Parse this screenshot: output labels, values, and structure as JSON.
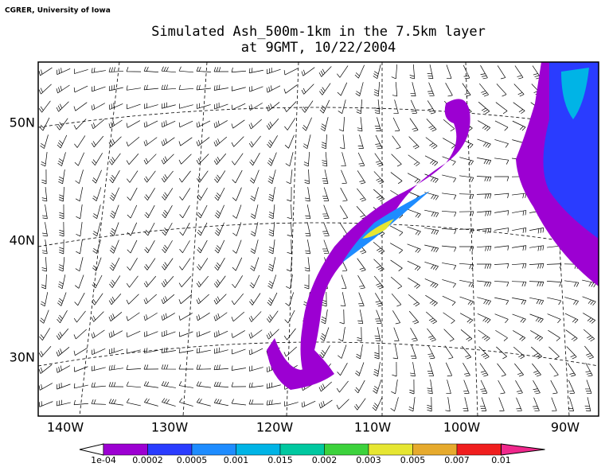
{
  "header": {
    "credit": "CGRER, University of Iowa",
    "title": [
      "Simulated Ash_500m-1km in the 7.5km layer",
      "at 9GMT, 10/22/2004"
    ]
  },
  "map": {
    "lat_labels": [
      "50N",
      "40N",
      "30N"
    ],
    "lon_labels": [
      "140W",
      "130W",
      "120W",
      "110W",
      "100W",
      "90W"
    ]
  },
  "legend": {
    "labels": [
      "1e-04",
      "0.0002",
      "0.0005",
      "0.001",
      "0.015",
      "0.002",
      "0.003",
      "0.005",
      "0.007",
      "0.01"
    ],
    "colors": [
      "#9c00d2",
      "#2a3cff",
      "#1e8cff",
      "#00b4e6",
      "#00c8a0",
      "#3cd23c",
      "#e6e632",
      "#e6aa2d",
      "#f01e1e"
    ],
    "under_color": "#ffffff",
    "over_color": "#f0288c"
  }
}
